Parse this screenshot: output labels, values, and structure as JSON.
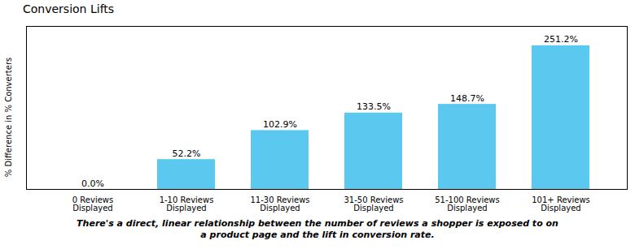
{
  "chart_data": {
    "type": "bar",
    "title": "Conversion Lifts",
    "ylabel": "% Difference in % Converters",
    "categories": [
      "0 Reviews\nDisplayed",
      "1-10 Reviews\nDisplayed",
      "11-30 Reviews\nDisplayed",
      "31-50 Reviews\nDisplayed",
      "51-100 Reviews\nDisplayed",
      "101+ Reviews\nDisplayed"
    ],
    "values": [
      0.0,
      52.2,
      102.9,
      133.5,
      148.7,
      251.2
    ],
    "value_labels": [
      "0.0%",
      "52.2%",
      "102.9%",
      "133.5%",
      "148.7%",
      "251.2%"
    ],
    "data_labels": true,
    "color": "#5BC8F0",
    "ylim": [
      0,
      285
    ],
    "tick_labels": "x",
    "grid": false,
    "caption": "There's a direct, linear relationship between the number of reviews a shopper is exposed to on\na product page and the lift in conversion rate."
  }
}
